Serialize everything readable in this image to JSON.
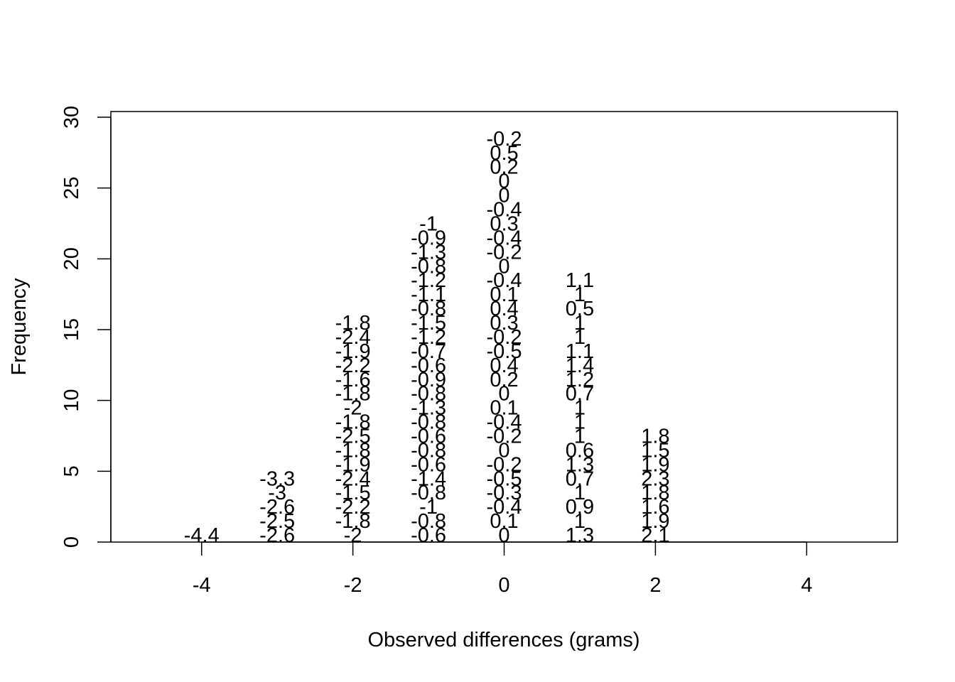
{
  "chart_data": {
    "type": "scatter",
    "title": "",
    "xlabel": "Observed differences (grams)",
    "ylabel": "Frequency",
    "xlim": [
      -5.2,
      5.2
    ],
    "ylim": [
      0,
      30.4
    ],
    "x_ticks": [
      "-4",
      "-2",
      "0",
      "2",
      "4"
    ],
    "y_ticks": [
      "0",
      "5",
      "10",
      "15",
      "20",
      "25",
      "30"
    ],
    "grid": false,
    "legend": "none",
    "columns": [
      {
        "x": -4,
        "labels": [
          "-4.4"
        ]
      },
      {
        "x": -3,
        "labels": [
          "-2.6",
          "-2.5",
          "-2.6",
          "-3",
          "-3.3"
        ]
      },
      {
        "x": -2,
        "labels": [
          "-2",
          "-1.8",
          "-2.2",
          "-1.5",
          "-2.4",
          "-1.9",
          "-1.8",
          "-2.5",
          "-1.8",
          "-2",
          "-1.8",
          "-1.6",
          "-2.2",
          "-1.9",
          "-2.4",
          "-1.8"
        ]
      },
      {
        "x": -1,
        "labels": [
          "-0.6",
          "-0.8",
          "-1",
          "-0.8",
          "-1.4",
          "-0.6",
          "-0.8",
          "-0.6",
          "-0.8",
          "-1.3",
          "-0.8",
          "-0.9",
          "-0.6",
          "-0.7",
          "-1.2",
          "-1.5",
          "-0.8",
          "-1.1",
          "-1.2",
          "-0.8",
          "-1.3",
          "-0.9",
          "-1"
        ]
      },
      {
        "x": 0,
        "labels": [
          "0",
          "0.1",
          "-0.4",
          "-0.3",
          "-0.5",
          "-0.2",
          "0",
          "-0.2",
          "-0.4",
          "0.1",
          "0",
          "0.2",
          "0.4",
          "-0.5",
          "-0.2",
          "0.3",
          "0.4",
          "0.1",
          "-0.4",
          "0",
          "-0.2",
          "-0.4",
          "0.3",
          "-0.4",
          "0",
          "0",
          "0.2",
          "0.5",
          "-0.2"
        ]
      },
      {
        "x": 1,
        "labels": [
          "1.3",
          "1",
          "0.9",
          "1",
          "0.7",
          "1.3",
          "0.6",
          "1",
          "1",
          "1",
          "0.7",
          "1.2",
          "1.4",
          "1.1",
          "1",
          "1",
          "0.5",
          "1",
          "1.1"
        ]
      },
      {
        "x": 2,
        "labels": [
          "2.1",
          "1.9",
          "1.6",
          "1.8",
          "2.3",
          "1.9",
          "1.5",
          "1.8"
        ]
      }
    ]
  }
}
